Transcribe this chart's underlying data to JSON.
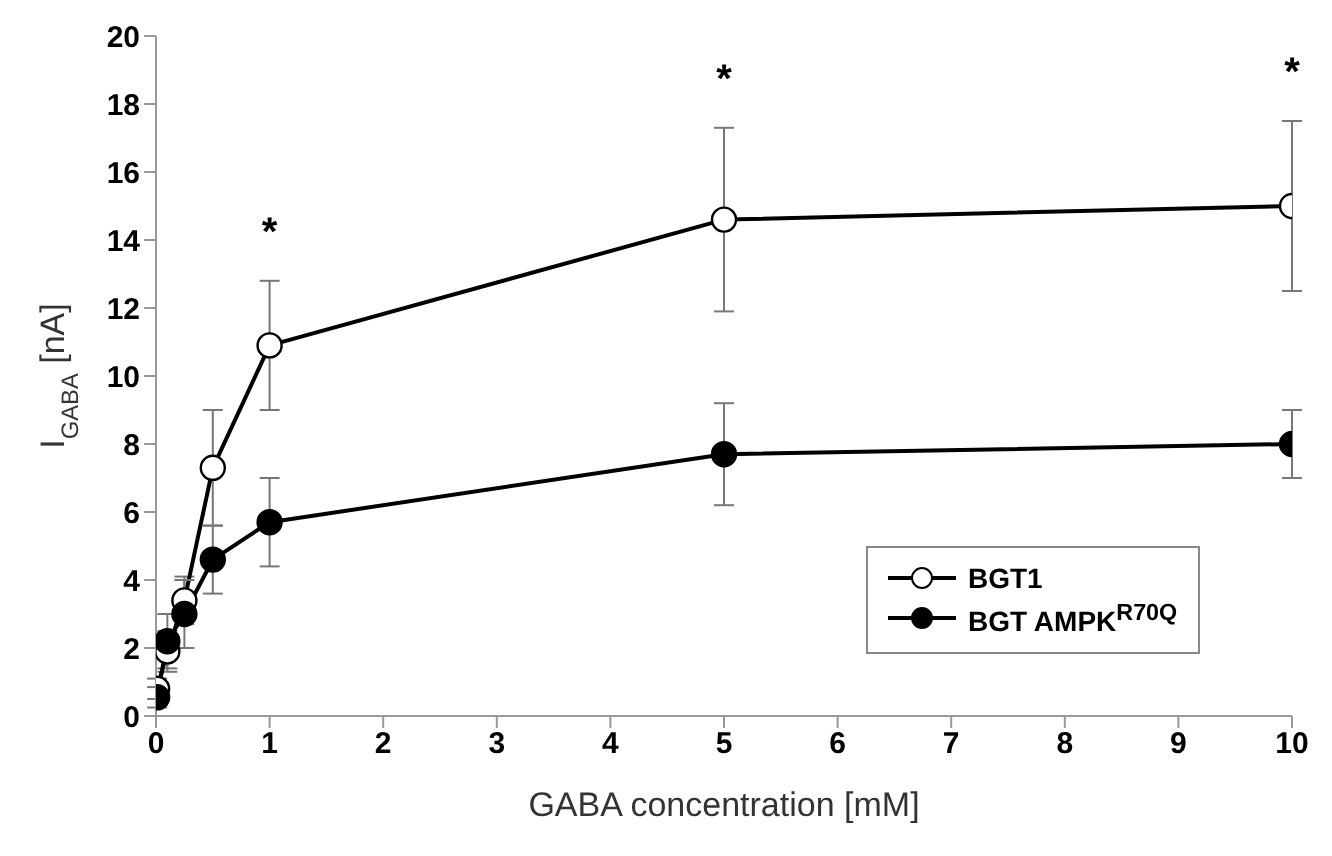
{
  "chart_data": {
    "type": "line",
    "xlabel": "GABA concentration [mM]",
    "ylabel": "I$_{GABA}$ [nA]",
    "x": [
      0.01,
      0.1,
      0.25,
      0.5,
      1,
      5,
      10
    ],
    "series": [
      {
        "name": "BGT1",
        "color": "#000000",
        "values": [
          0.8,
          1.9,
          3.4,
          7.3,
          10.9,
          14.6,
          15.0
        ],
        "errors": [
          0.3,
          0.6,
          0.7,
          1.7,
          1.9,
          2.7,
          2.5
        ]
      },
      {
        "name": "BGT AMPK$^{R70Q}$",
        "color": "#000000",
        "values": [
          0.55,
          2.2,
          3.0,
          4.6,
          5.7,
          7.7,
          8.0
        ],
        "errors": [
          0.3,
          0.8,
          1.0,
          1.0,
          1.3,
          1.5,
          1.0
        ]
      }
    ],
    "xlim": [
      0,
      10
    ],
    "xticks": [
      0,
      1,
      2,
      3,
      4,
      5,
      6,
      7,
      8,
      9,
      10
    ],
    "ylim": [
      0,
      20
    ],
    "yticks": [
      0,
      2,
      4,
      6,
      8,
      10,
      12,
      14,
      16,
      18,
      20
    ],
    "annotations": [
      "*",
      "*",
      "*"
    ],
    "grid": false,
    "legend": "bottom right",
    "marker": "circle",
    "line_style": "solid"
  }
}
